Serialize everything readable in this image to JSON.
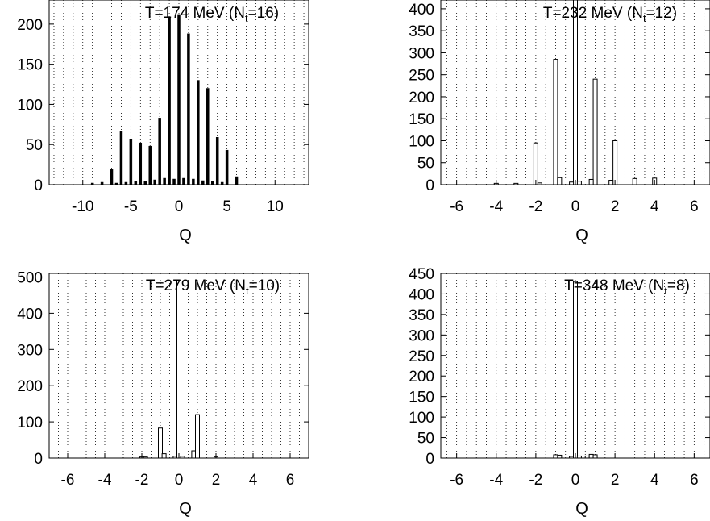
{
  "chart_data": [
    {
      "type": "bar",
      "title": "T=174 MeV (N",
      "title_subscript": "t",
      "title_tail": "=16)",
      "xlabel": "Q",
      "ylabel": "",
      "xlim": [
        -13.5,
        13.5
      ],
      "ylim": [
        0,
        230
      ],
      "xticks": [
        -10,
        -5,
        0,
        5,
        10
      ],
      "yticks": [
        0,
        50,
        100,
        150,
        200
      ],
      "grid_x": [
        -13,
        -12,
        -11,
        -10,
        -9,
        -8,
        -7,
        -6,
        -5,
        -4,
        -3,
        -2,
        -1,
        0,
        1,
        2,
        3,
        4,
        5,
        6,
        7,
        8,
        9,
        10,
        11,
        12,
        13
      ],
      "grid": "vertical dotted",
      "series": [
        {
          "x": [
            -9,
            -8,
            -7,
            -6,
            -5,
            -4,
            -3,
            -2,
            -1,
            0,
            1,
            2,
            3,
            4,
            5,
            6
          ],
          "values": [
            2,
            3,
            19,
            66,
            57,
            52,
            48,
            83,
            208,
            212,
            188,
            130,
            120,
            59,
            43,
            10
          ]
        },
        {
          "x": [
            -6.5,
            -5.5,
            -4.5,
            -3.5,
            -2.5,
            -1.5,
            -0.5,
            0.5,
            1.5,
            2.5,
            3.5,
            4.5
          ],
          "values": [
            2,
            3,
            4,
            4,
            6,
            8,
            7,
            8,
            7,
            5,
            4,
            3
          ]
        }
      ]
    },
    {
      "type": "bar",
      "title": "T=232 MeV (N",
      "title_subscript": "t",
      "title_tail": "=12)",
      "xlabel": "Q",
      "ylabel": "",
      "xlim": [
        -6.8,
        6.8
      ],
      "ylim": [
        0,
        420
      ],
      "xticks": [
        -6,
        -4,
        -2,
        0,
        2,
        4,
        6
      ],
      "yticks": [
        0,
        50,
        100,
        150,
        200,
        250,
        300,
        350,
        400
      ],
      "grid_x": [
        -6.5,
        -6,
        -5.5,
        -5,
        -4.5,
        -4,
        -3.5,
        -3,
        -2.5,
        -2,
        -1.5,
        -1,
        -0.5,
        0,
        0.5,
        1,
        1.5,
        2,
        2.5,
        3,
        3.5,
        4,
        4.5,
        5,
        5.5,
        6,
        6.5
      ],
      "grid": "vertical dotted",
      "series": [
        {
          "x": [
            -4,
            -3,
            -2,
            -1,
            0,
            1,
            2,
            3,
            4
          ],
          "values": [
            3,
            3,
            95,
            285,
            420,
            240,
            100,
            14,
            15
          ]
        },
        {
          "x": [
            -1.8,
            -0.8,
            -0.2,
            0.2,
            0.8,
            1.8
          ],
          "values": [
            4,
            16,
            6,
            8,
            12,
            10
          ]
        }
      ]
    },
    {
      "type": "bar",
      "title": "T=279 MeV (N",
      "title_subscript": "t",
      "title_tail": "=10)",
      "xlabel": "Q",
      "ylabel": "",
      "xlim": [
        -7,
        7
      ],
      "ylim": [
        0,
        510
      ],
      "xticks": [
        -6,
        -4,
        -2,
        0,
        2,
        4,
        6
      ],
      "yticks": [
        0,
        100,
        200,
        300,
        400,
        500
      ],
      "grid_x": [
        -6.5,
        -6,
        -5.5,
        -5,
        -4.5,
        -4,
        -3.5,
        -3,
        -2.5,
        -2,
        -1.5,
        -1,
        -0.5,
        0,
        0.5,
        1,
        1.5,
        2,
        2.5,
        3,
        3.5,
        4,
        4.5,
        5,
        5.5,
        6,
        6.5
      ],
      "grid": "vertical dotted",
      "series": [
        {
          "x": [
            -2,
            -1.8,
            -1,
            -0.8,
            -0.2,
            0,
            0.2,
            0.8,
            1,
            2
          ],
          "values": [
            3,
            3,
            83,
            12,
            5,
            490,
            5,
            20,
            120,
            3
          ]
        }
      ]
    },
    {
      "type": "bar",
      "title": "T=348 MeV (N",
      "title_subscript": "t",
      "title_tail": "=8)",
      "xlabel": "Q",
      "ylabel": "",
      "xlim": [
        -6.8,
        6.8
      ],
      "ylim": [
        0,
        450
      ],
      "xticks": [
        -6,
        -4,
        -2,
        0,
        2,
        4,
        6
      ],
      "yticks": [
        0,
        50,
        100,
        150,
        200,
        250,
        300,
        350,
        400,
        450
      ],
      "grid_x": [
        -6.5,
        -6,
        -5.5,
        -5,
        -4.5,
        -4,
        -3.5,
        -3,
        -2.5,
        -2,
        -1.5,
        -1,
        -0.5,
        0,
        0.5,
        1,
        1.5,
        2,
        2.5,
        3,
        3.5,
        4,
        4.5,
        5,
        5.5,
        6,
        6.5
      ],
      "grid": "vertical dotted",
      "series": [
        {
          "x": [
            -1,
            -0.8,
            -0.2,
            0,
            0.2,
            0.6,
            0.8,
            1
          ],
          "values": [
            8,
            7,
            4,
            430,
            5,
            5,
            9,
            8
          ]
        }
      ]
    }
  ]
}
